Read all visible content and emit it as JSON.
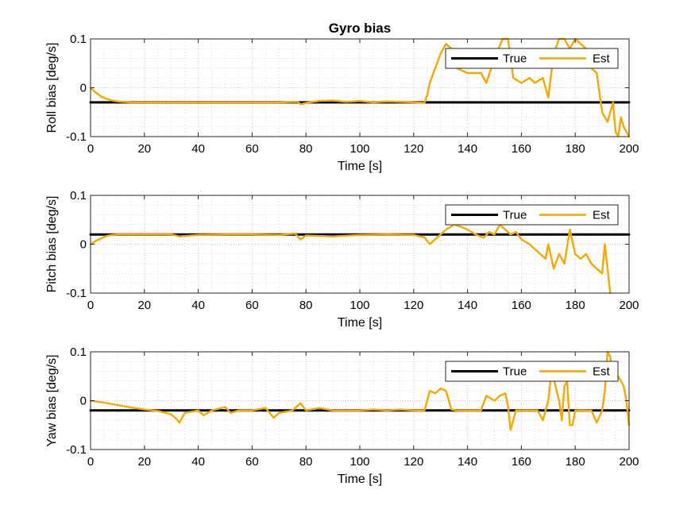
{
  "chart_data": {
    "title": "Gyro bias",
    "colors": {
      "true": "#000000",
      "est": "#f2a900",
      "grid": "#c8c8c8"
    },
    "charts": [
      {
        "type": "line",
        "xlabel": "Time [s]",
        "ylabel": "Roll bias [deg/s]",
        "xlim": [
          0,
          200
        ],
        "ylim": [
          -0.1,
          0.1
        ],
        "xticks": [
          "0",
          "20",
          "40",
          "60",
          "80",
          "100",
          "120",
          "140",
          "160",
          "180",
          "200"
        ],
        "yticks": [
          "-0.1",
          "0",
          "0.1"
        ],
        "grid": true,
        "minor_grid": true,
        "legend_position": "top-right",
        "series": [
          {
            "name": "True",
            "color": "#000000",
            "x": [
              0,
              200
            ],
            "y": [
              -0.03,
              -0.03
            ]
          },
          {
            "name": "Est",
            "color": "#f2a900",
            "x": [
              0,
              2,
              4,
              6,
              8,
              10,
              12,
              15,
              20,
              30,
              40,
              50,
              60,
              70,
              77,
              78,
              80,
              85,
              90,
              95,
              100,
              105,
              110,
              115,
              120,
              124,
              125,
              126,
              128,
              130,
              132,
              134,
              136,
              140,
              143,
              145,
              147,
              150,
              153,
              155,
              157,
              160,
              163,
              165,
              168,
              170,
              172,
              174,
              176,
              178,
              180,
              182,
              184,
              186,
              188,
              190,
              192,
              194,
              195,
              196,
              197,
              198,
              199,
              200
            ],
            "y": [
              0.0,
              -0.01,
              -0.018,
              -0.023,
              -0.026,
              -0.028,
              -0.029,
              -0.03,
              -0.03,
              -0.03,
              -0.03,
              -0.03,
              -0.03,
              -0.03,
              -0.029,
              -0.034,
              -0.031,
              -0.027,
              -0.026,
              -0.029,
              -0.027,
              -0.03,
              -0.028,
              -0.029,
              -0.03,
              -0.031,
              -0.015,
              0.01,
              0.04,
              0.07,
              0.09,
              0.08,
              0.04,
              0.03,
              0.03,
              0.03,
              0.01,
              0.06,
              0.1,
              0.1,
              0.02,
              0.01,
              0.02,
              0.01,
              0.02,
              -0.02,
              0.07,
              0.1,
              0.1,
              0.08,
              0.1,
              0.09,
              0.08,
              0.04,
              0.03,
              -0.05,
              -0.07,
              -0.03,
              -0.09,
              -0.1,
              -0.06,
              -0.08,
              -0.09,
              -0.1
            ]
          }
        ]
      },
      {
        "type": "line",
        "xlabel": "Time [s]",
        "ylabel": "Pitch bias [deg/s]",
        "xlim": [
          0,
          200
        ],
        "ylim": [
          -0.1,
          0.1
        ],
        "xticks": [
          "0",
          "20",
          "40",
          "60",
          "80",
          "100",
          "120",
          "140",
          "160",
          "180",
          "200"
        ],
        "yticks": [
          "-0.1",
          "0",
          "0.1"
        ],
        "grid": true,
        "minor_grid": true,
        "legend_position": "top-right",
        "series": [
          {
            "name": "True",
            "color": "#000000",
            "x": [
              0,
              200
            ],
            "y": [
              0.02,
              0.02
            ]
          },
          {
            "name": "Est",
            "color": "#f2a900",
            "x": [
              0,
              2,
              4,
              6,
              8,
              10,
              15,
              20,
              30,
              33,
              40,
              50,
              60,
              70,
              76,
              78,
              80,
              90,
              100,
              110,
              120,
              124,
              126,
              128,
              130,
              132,
              135,
              138,
              140,
              143,
              146,
              148,
              150,
              152,
              154,
              156,
              158,
              160,
              163,
              165,
              167,
              169,
              170,
              172,
              174,
              176,
              178,
              180,
              182,
              184,
              186,
              188,
              190,
              191,
              192,
              193
            ],
            "y": [
              0.0,
              0.007,
              0.012,
              0.017,
              0.019,
              0.02,
              0.02,
              0.02,
              0.02,
              0.016,
              0.019,
              0.02,
              0.02,
              0.019,
              0.022,
              0.01,
              0.018,
              0.016,
              0.019,
              0.02,
              0.019,
              0.014,
              0.0,
              0.01,
              0.02,
              0.03,
              0.04,
              0.035,
              0.03,
              0.02,
              0.013,
              0.025,
              0.02,
              0.04,
              0.03,
              0.02,
              0.025,
              0.01,
              0.0,
              -0.01,
              -0.02,
              -0.03,
              0.0,
              -0.05,
              -0.02,
              -0.04,
              0.03,
              -0.02,
              -0.03,
              -0.02,
              -0.04,
              -0.05,
              -0.06,
              0.0,
              -0.05,
              -0.1
            ]
          }
        ]
      },
      {
        "type": "line",
        "xlabel": "Time [s]",
        "ylabel": "Yaw bias [deg/s]",
        "xlim": [
          0,
          200
        ],
        "ylim": [
          -0.1,
          0.1
        ],
        "xticks": [
          "0",
          "20",
          "40",
          "60",
          "80",
          "100",
          "120",
          "140",
          "160",
          "180",
          "200"
        ],
        "yticks": [
          "-0.1",
          "0",
          "0.1"
        ],
        "grid": true,
        "minor_grid": true,
        "legend_position": "top-right",
        "series": [
          {
            "name": "True",
            "color": "#000000",
            "x": [
              0,
              200
            ],
            "y": [
              -0.02,
              -0.02
            ]
          },
          {
            "name": "Est",
            "color": "#f2a900",
            "x": [
              0,
              5,
              10,
              15,
              20,
              25,
              30,
              32,
              33,
              35,
              40,
              42,
              45,
              50,
              52,
              55,
              60,
              65,
              68,
              70,
              75,
              78,
              80,
              85,
              90,
              95,
              100,
              105,
              110,
              115,
              120,
              124,
              125,
              126,
              128,
              130,
              132,
              134,
              136,
              138,
              140,
              145,
              147,
              150,
              152,
              154,
              155,
              156,
              158,
              160,
              163,
              166,
              168,
              170,
              171,
              172,
              174,
              175,
              176,
              177,
              178,
              179,
              180,
              182,
              184,
              186,
              188,
              190,
              191,
              192,
              193,
              194,
              195,
              196,
              197,
              198,
              199,
              200
            ],
            "y": [
              0.0,
              -0.004,
              -0.009,
              -0.014,
              -0.018,
              -0.021,
              -0.028,
              -0.038,
              -0.045,
              -0.025,
              -0.02,
              -0.03,
              -0.02,
              -0.013,
              -0.025,
              -0.02,
              -0.02,
              -0.015,
              -0.035,
              -0.025,
              -0.02,
              -0.005,
              -0.02,
              -0.015,
              -0.02,
              -0.02,
              -0.02,
              -0.018,
              -0.02,
              -0.018,
              -0.02,
              -0.02,
              0.0,
              0.02,
              0.015,
              0.025,
              0.02,
              -0.018,
              -0.02,
              -0.02,
              -0.02,
              -0.02,
              0.01,
              0.0,
              0.01,
              0.015,
              -0.01,
              -0.06,
              -0.02,
              -0.02,
              -0.02,
              -0.02,
              -0.04,
              0.0,
              0.05,
              0.045,
              0.0,
              -0.04,
              0.03,
              0.04,
              -0.05,
              -0.05,
              -0.02,
              -0.02,
              -0.02,
              -0.02,
              -0.045,
              -0.02,
              0.02,
              0.1,
              0.09,
              0.04,
              0.05,
              0.05,
              0.04,
              0.03,
              0.0,
              -0.05
            ]
          }
        ]
      }
    ]
  }
}
